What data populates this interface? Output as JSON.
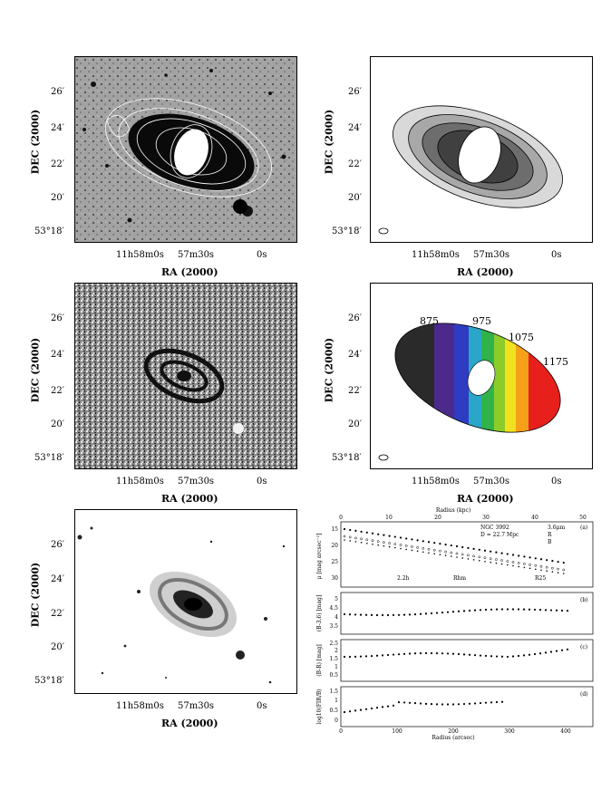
{
  "axes": {
    "ylabel": "DEC (2000)",
    "xlabel": "RA (2000)",
    "dec_ticks": [
      "26′",
      "24′",
      "22′",
      "20′",
      "53°18′"
    ],
    "ra_ticks": [
      "11h58m0s",
      "57m30s",
      "0s"
    ]
  },
  "velocity_labels": [
    "875",
    "975",
    "1075",
    "1175"
  ],
  "profile": {
    "top_axis_label": "Radius (kpc)",
    "top_ticks": [
      "0",
      "10",
      "20",
      "30",
      "40",
      "50"
    ],
    "bottom_axis_label": "Radius (arcsec)",
    "bottom_ticks": [
      "0",
      "100",
      "200",
      "300",
      "400"
    ],
    "legend_name": "NGC 3992",
    "legend_distance": "D = 22.7 Mpc",
    "legend_series": [
      "3.6μm",
      "R",
      "B"
    ],
    "marker_labels": [
      "2.2h",
      "Rhm",
      "R25"
    ],
    "panel_labels": [
      "(a)",
      "(b)",
      "(c)",
      "(d)"
    ],
    "ylabels": [
      "μ [mag arcsec⁻²]",
      "(B-3.6) [mag]",
      "(B-R) [mag]",
      "log10(FIR/B)"
    ],
    "a_ticks": [
      "15",
      "20",
      "25",
      "30"
    ],
    "b_ticks": [
      "5",
      "4.5",
      "4",
      "3.5"
    ],
    "c_ticks": [
      "2.5",
      "2",
      "1.5",
      "1",
      "0.5"
    ],
    "d_ticks": [
      "1.5",
      "1",
      "0.5",
      "0"
    ]
  }
}
